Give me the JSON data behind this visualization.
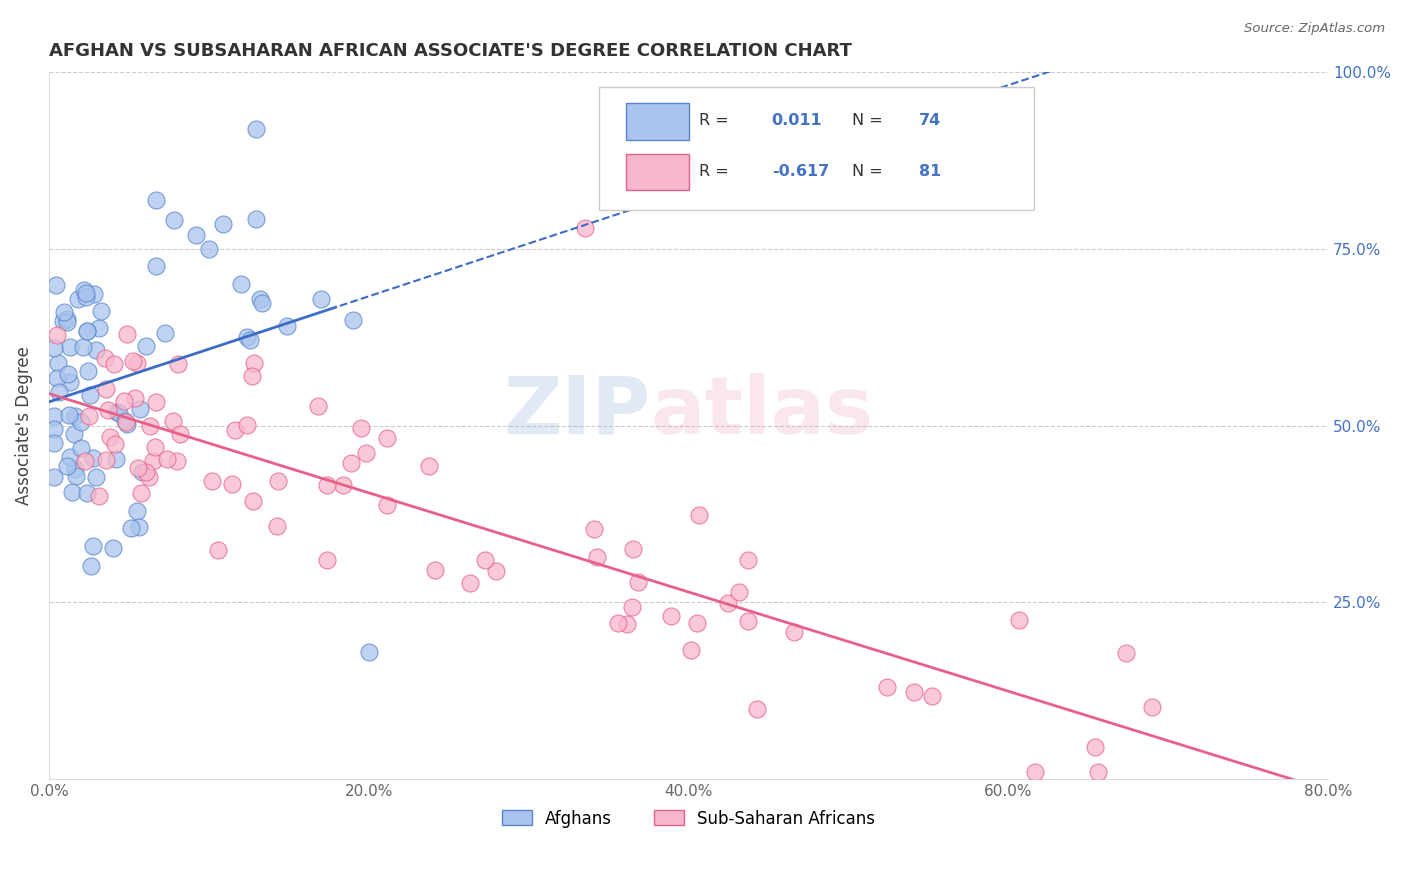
{
  "title": "AFGHAN VS SUBSAHARAN AFRICAN ASSOCIATE'S DEGREE CORRELATION CHART",
  "source": "Source: ZipAtlas.com",
  "ylabel": "Associate's Degree",
  "xlim": [
    0.0,
    0.8
  ],
  "ylim": [
    0.0,
    1.0
  ],
  "xtick_vals": [
    0.0,
    0.2,
    0.4,
    0.6,
    0.8
  ],
  "xtick_labels": [
    "0.0%",
    "20.0%",
    "40.0%",
    "60.0%",
    "80.0%"
  ],
  "ytick_vals": [
    0.0,
    0.25,
    0.5,
    0.75,
    1.0
  ],
  "ytick_labels": [
    "",
    "25.0%",
    "50.0%",
    "75.0%",
    "100.0%"
  ],
  "afghan_R": 0.011,
  "afghan_N": 74,
  "subsaharan_R": -0.617,
  "subsaharan_N": 81,
  "afghan_color": "#aac4ee",
  "subsaharan_color": "#f8b8cc",
  "afghan_edge_color": "#5585cc",
  "subsaharan_edge_color": "#e8608a",
  "afghan_line_color": "#3a6cc8",
  "subsaharan_line_color": "#e8608a",
  "tick_color": "#4472c4",
  "watermark_zip_color": "#8baad8",
  "watermark_atlas_color": "#e8a0b8",
  "legend_labels": [
    "Afghans",
    "Sub-Saharan Africans"
  ]
}
